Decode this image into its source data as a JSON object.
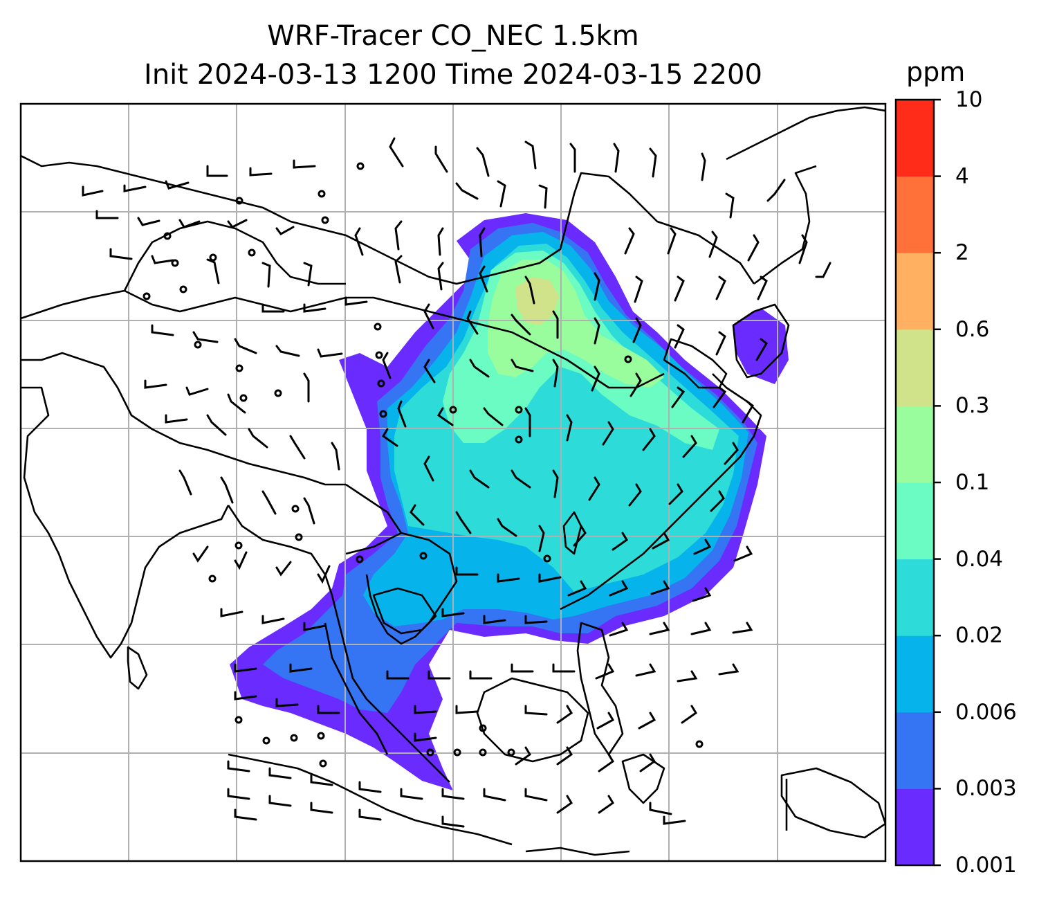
{
  "title": {
    "line1": "WRF-Tracer CO_NEC 1.5km",
    "line2": "Init 2024-03-13 1200 Time 2024-03-15 2200"
  },
  "colorbar": {
    "units": "ppm",
    "ticks": [
      "0.001",
      "0.003",
      "0.006",
      "0.02",
      "0.04",
      "0.1",
      "0.3",
      "0.6",
      "2",
      "4",
      "10"
    ],
    "colors": [
      "#6a2bff",
      "#3575f4",
      "#06b3eb",
      "#2ddbd9",
      "#6afcc2",
      "#99fc9d",
      "#d0e28a",
      "#ffb161",
      "#ff7139",
      "#ff2c1a"
    ]
  },
  "map": {
    "field": "CO_NEC tracer concentration",
    "overlay": "wind barbs",
    "gridlines": true,
    "coastlines": true,
    "borders": true
  }
}
